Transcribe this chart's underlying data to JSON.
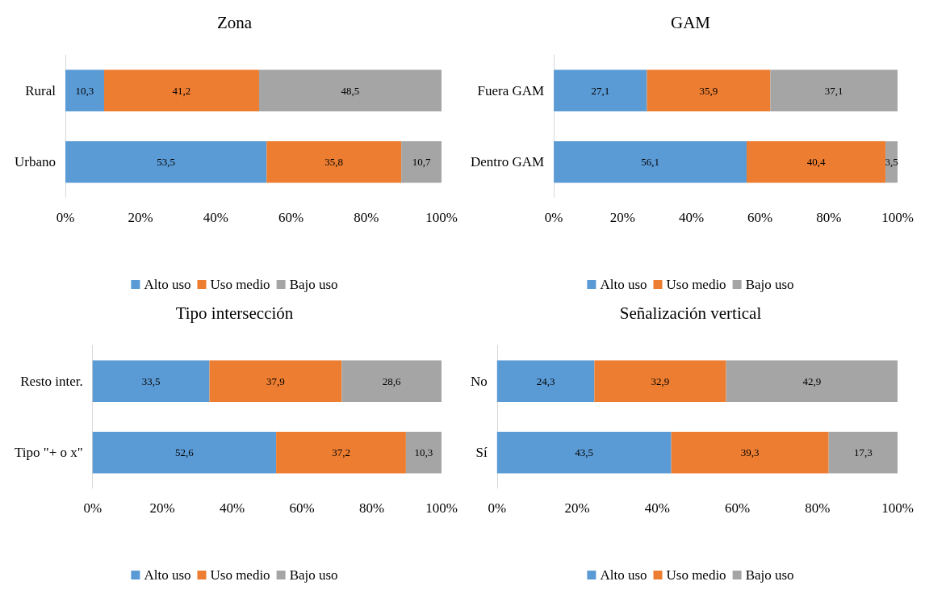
{
  "chart_data": [
    {
      "type": "bar",
      "orientation": "horizontal",
      "stacked": true,
      "title": "Zona",
      "categories": [
        "Rural",
        "Urbano"
      ],
      "xlim": [
        0,
        100
      ],
      "xticks": [
        {
          "value": 0,
          "label": "0%"
        },
        {
          "value": 20,
          "label": "20%"
        },
        {
          "value": 40,
          "label": "40%"
        },
        {
          "value": 60,
          "label": "60%"
        },
        {
          "value": 80,
          "label": "80%"
        },
        {
          "value": 100,
          "label": "100%"
        }
      ],
      "legend": "bottom",
      "grid": false,
      "series": [
        {
          "name": "Alto uso",
          "color": "#5b9bd5",
          "values": [
            10.3,
            53.5
          ],
          "value_labels": [
            "10,3",
            "53,5"
          ]
        },
        {
          "name": "Uso medio",
          "color": "#ed7d31",
          "values": [
            41.2,
            35.8
          ],
          "value_labels": [
            "41,2",
            "35,8"
          ]
        },
        {
          "name": "Bajo uso",
          "color": "#a5a5a5",
          "values": [
            48.5,
            10.7
          ],
          "value_labels": [
            "48,5",
            "10,7"
          ]
        }
      ]
    },
    {
      "type": "bar",
      "orientation": "horizontal",
      "stacked": true,
      "title": "GAM",
      "categories": [
        "Fuera GAM",
        "Dentro GAM"
      ],
      "xlim": [
        0,
        100
      ],
      "xticks": [
        {
          "value": 0,
          "label": "0%"
        },
        {
          "value": 20,
          "label": "20%"
        },
        {
          "value": 40,
          "label": "40%"
        },
        {
          "value": 60,
          "label": "60%"
        },
        {
          "value": 80,
          "label": "80%"
        },
        {
          "value": 100,
          "label": "100%"
        }
      ],
      "legend": "bottom",
      "grid": false,
      "series": [
        {
          "name": "Alto uso",
          "color": "#5b9bd5",
          "values": [
            27.1,
            56.1
          ],
          "value_labels": [
            "27,1",
            "56,1"
          ]
        },
        {
          "name": "Uso medio",
          "color": "#ed7d31",
          "values": [
            35.9,
            40.4
          ],
          "value_labels": [
            "35,9",
            "40,4"
          ]
        },
        {
          "name": "Bajo uso",
          "color": "#a5a5a5",
          "values": [
            37.1,
            3.5
          ],
          "value_labels": [
            "37,1",
            "3,5"
          ]
        }
      ]
    },
    {
      "type": "bar",
      "orientation": "horizontal",
      "stacked": true,
      "title": "Tipo intersección",
      "categories": [
        "Resto inter.",
        "Tipo \"+ o x\""
      ],
      "xlim": [
        0,
        100
      ],
      "xticks": [
        {
          "value": 0,
          "label": "0%"
        },
        {
          "value": 20,
          "label": "20%"
        },
        {
          "value": 40,
          "label": "40%"
        },
        {
          "value": 60,
          "label": "60%"
        },
        {
          "value": 80,
          "label": "80%"
        },
        {
          "value": 100,
          "label": "100%"
        }
      ],
      "legend": "bottom",
      "grid": false,
      "series": [
        {
          "name": "Alto uso",
          "color": "#5b9bd5",
          "values": [
            33.5,
            52.6
          ],
          "value_labels": [
            "33,5",
            "52,6"
          ]
        },
        {
          "name": "Uso medio",
          "color": "#ed7d31",
          "values": [
            37.9,
            37.2
          ],
          "value_labels": [
            "37,9",
            "37,2"
          ]
        },
        {
          "name": "Bajo uso",
          "color": "#a5a5a5",
          "values": [
            28.6,
            10.3
          ],
          "value_labels": [
            "28,6",
            "10,3"
          ]
        }
      ]
    },
    {
      "type": "bar",
      "orientation": "horizontal",
      "stacked": true,
      "title": "Señalización vertical",
      "categories": [
        "No",
        "Sí"
      ],
      "xlim": [
        0,
        100
      ],
      "xticks": [
        {
          "value": 0,
          "label": "0%"
        },
        {
          "value": 20,
          "label": "20%"
        },
        {
          "value": 40,
          "label": "40%"
        },
        {
          "value": 60,
          "label": "60%"
        },
        {
          "value": 80,
          "label": "80%"
        },
        {
          "value": 100,
          "label": "100%"
        }
      ],
      "legend": "bottom",
      "grid": false,
      "series": [
        {
          "name": "Alto uso",
          "color": "#5b9bd5",
          "values": [
            24.3,
            43.5
          ],
          "value_labels": [
            "24,3",
            "43,5"
          ]
        },
        {
          "name": "Uso medio",
          "color": "#ed7d31",
          "values": [
            32.9,
            39.3
          ],
          "value_labels": [
            "32,9",
            "39,3"
          ]
        },
        {
          "name": "Bajo uso",
          "color": "#a5a5a5",
          "values": [
            42.9,
            17.3
          ],
          "value_labels": [
            "42,9",
            "17,3"
          ]
        }
      ]
    }
  ]
}
